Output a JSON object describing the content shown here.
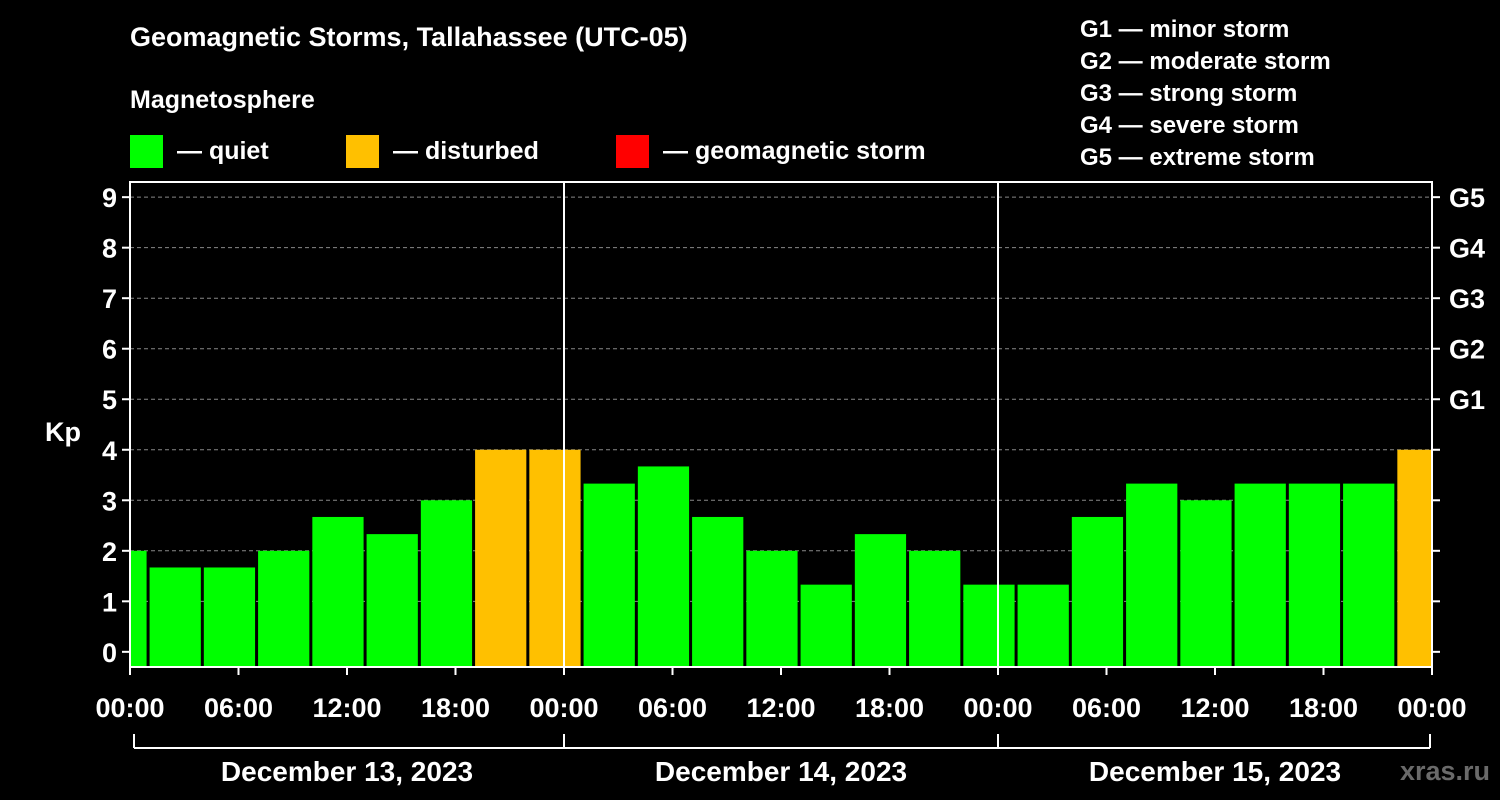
{
  "chart_data": {
    "type": "bar",
    "title": "Geomagnetic Storms, Tallahassee (UTC-05)",
    "legend_title": "Magnetosphere",
    "legend": [
      {
        "label": "— quiet",
        "color": "#00ff00"
      },
      {
        "label": "— disturbed",
        "color": "#ffc000"
      },
      {
        "label": "— geomagnetic storm",
        "color": "#ff0000"
      }
    ],
    "storm_scale": [
      "G1 — minor storm",
      "G2 — moderate storm",
      "G3 — strong storm",
      "G4 — severe storm",
      "G5 — extreme storm"
    ],
    "ylabel": "Kp",
    "ylim": [
      -0.3,
      9.3
    ],
    "yticks": [
      "0",
      "1",
      "2",
      "3",
      "4",
      "5",
      "6",
      "7",
      "8",
      "9"
    ],
    "right_ticks": [
      {
        "kp": 5,
        "label": "G1"
      },
      {
        "kp": 6,
        "label": "G2"
      },
      {
        "kp": 7,
        "label": "G3"
      },
      {
        "kp": 8,
        "label": "G4"
      },
      {
        "kp": 9,
        "label": "G5"
      }
    ],
    "xlim_hours": [
      0,
      72
    ],
    "xtick_labels": [
      "00:00",
      "06:00",
      "12:00",
      "18:00",
      "00:00",
      "06:00",
      "12:00",
      "18:00",
      "00:00",
      "06:00",
      "12:00",
      "18:00",
      "00:00"
    ],
    "dates": [
      "December 13, 2023",
      "December 14, 2023",
      "December 15, 2023"
    ],
    "bars": [
      {
        "start": 0,
        "end": 1,
        "kp": 2.0,
        "level": "quiet"
      },
      {
        "start": 1,
        "end": 4,
        "kp": 1.67,
        "level": "quiet"
      },
      {
        "start": 4,
        "end": 7,
        "kp": 1.67,
        "level": "quiet"
      },
      {
        "start": 7,
        "end": 10,
        "kp": 2.0,
        "level": "quiet"
      },
      {
        "start": 10,
        "end": 13,
        "kp": 2.67,
        "level": "quiet"
      },
      {
        "start": 13,
        "end": 16,
        "kp": 2.33,
        "level": "quiet"
      },
      {
        "start": 16,
        "end": 19,
        "kp": 3.0,
        "level": "quiet"
      },
      {
        "start": 19,
        "end": 22,
        "kp": 4.0,
        "level": "disturbed"
      },
      {
        "start": 22,
        "end": 25,
        "kp": 4.0,
        "level": "disturbed"
      },
      {
        "start": 25,
        "end": 28,
        "kp": 3.33,
        "level": "quiet"
      },
      {
        "start": 28,
        "end": 31,
        "kp": 3.67,
        "level": "quiet"
      },
      {
        "start": 31,
        "end": 34,
        "kp": 2.67,
        "level": "quiet"
      },
      {
        "start": 34,
        "end": 37,
        "kp": 2.0,
        "level": "quiet"
      },
      {
        "start": 37,
        "end": 40,
        "kp": 1.33,
        "level": "quiet"
      },
      {
        "start": 40,
        "end": 43,
        "kp": 2.33,
        "level": "quiet"
      },
      {
        "start": 43,
        "end": 46,
        "kp": 2.0,
        "level": "quiet"
      },
      {
        "start": 46,
        "end": 49,
        "kp": 1.33,
        "level": "quiet"
      },
      {
        "start": 49,
        "end": 52,
        "kp": 1.33,
        "level": "quiet"
      },
      {
        "start": 52,
        "end": 55,
        "kp": 2.67,
        "level": "quiet"
      },
      {
        "start": 55,
        "end": 58,
        "kp": 3.33,
        "level": "quiet"
      },
      {
        "start": 58,
        "end": 61,
        "kp": 3.0,
        "level": "quiet"
      },
      {
        "start": 61,
        "end": 64,
        "kp": 3.33,
        "level": "quiet"
      },
      {
        "start": 64,
        "end": 67,
        "kp": 3.33,
        "level": "quiet"
      },
      {
        "start": 67,
        "end": 70,
        "kp": 3.33,
        "level": "quiet"
      },
      {
        "start": 70,
        "end": 72,
        "kp": 4.0,
        "level": "disturbed"
      }
    ],
    "colors": {
      "quiet": "#00ff00",
      "disturbed": "#ffc000",
      "storm": "#ff0000"
    },
    "grid": true
  },
  "watermark": "xras.ru"
}
